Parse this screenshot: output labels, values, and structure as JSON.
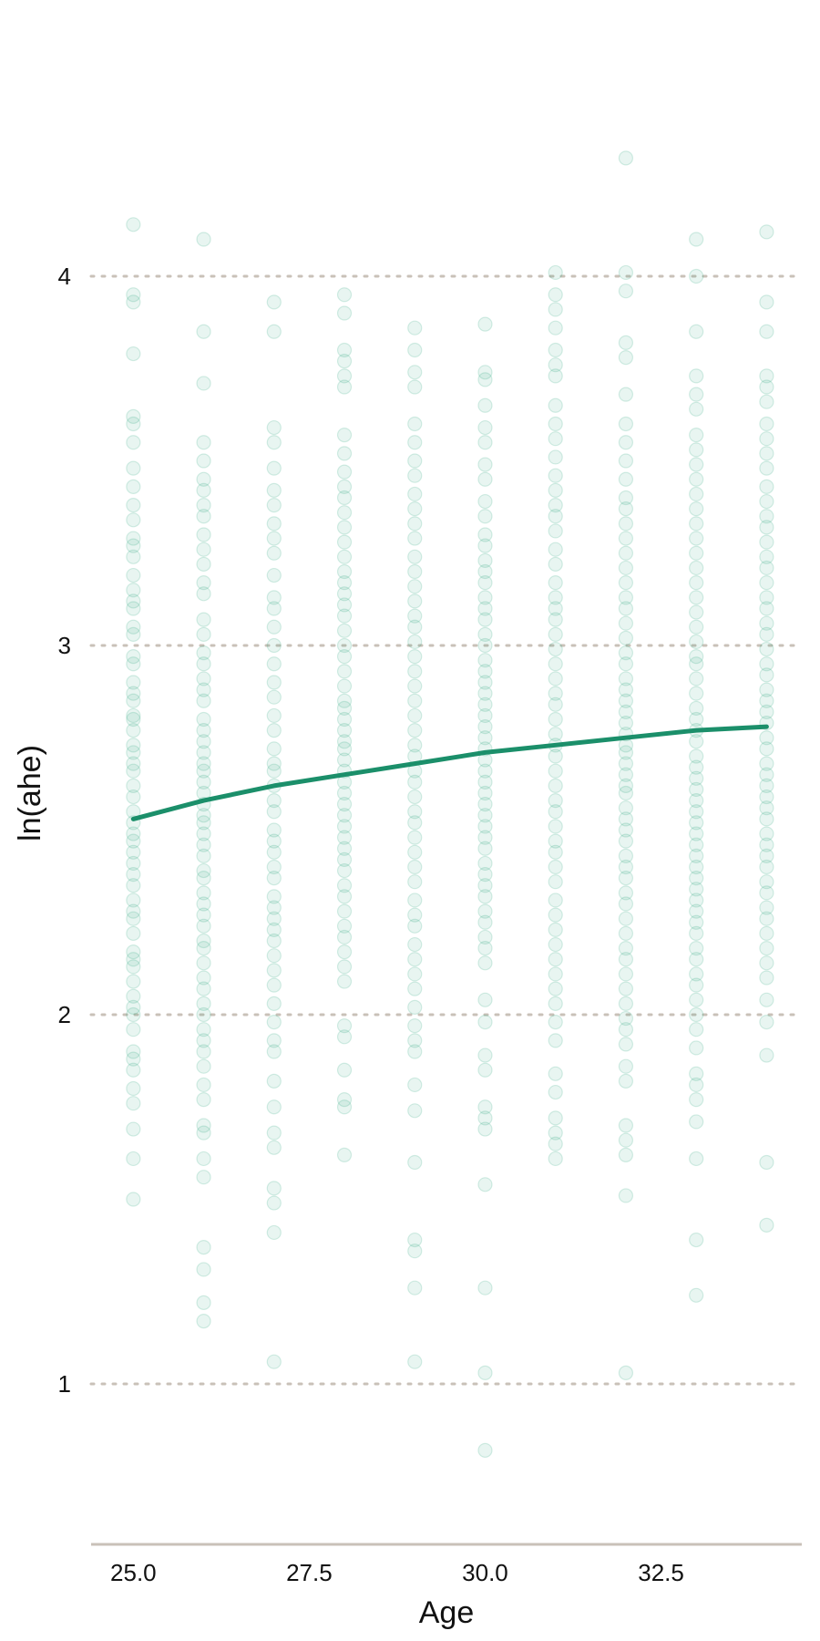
{
  "chart_data": {
    "type": "scatter",
    "title": "",
    "xlabel": "Age",
    "ylabel": "ln(ahe)",
    "xlim": [
      24.4,
      34.5
    ],
    "ylim": [
      0.6,
      4.6
    ],
    "x_ticks": [
      25.0,
      27.5,
      30.0,
      32.5
    ],
    "x_tick_labels": [
      "25.0",
      "27.5",
      "30.0",
      "32.5"
    ],
    "y_ticks": [
      1,
      2,
      3,
      4
    ],
    "y_tick_labels": [
      "1",
      "2",
      "3",
      "4"
    ],
    "grid": "horizontal dotted",
    "legend": "none",
    "colors": {
      "points": "#1b9e77",
      "fit_line": "#1b8f6a",
      "grid": "#c9c1b8",
      "axis": "#c9c1b8"
    },
    "fit_line": {
      "x": [
        25,
        26,
        27,
        28,
        29,
        30,
        31,
        32,
        33,
        34
      ],
      "y": [
        2.53,
        2.58,
        2.62,
        2.65,
        2.68,
        2.71,
        2.73,
        2.75,
        2.77,
        2.78
      ]
    },
    "series": [
      {
        "values": [
          {
            "x": 25,
            "y": [
              4.14,
              3.95,
              3.93,
              3.79,
              3.62,
              3.6,
              3.55,
              3.48,
              3.43,
              3.38,
              3.34,
              3.29,
              3.27,
              3.24,
              3.19,
              3.15,
              3.12,
              3.1,
              3.05,
              3.03,
              2.97,
              2.95,
              2.9,
              2.87,
              2.85,
              2.81,
              2.8,
              2.77,
              2.73,
              2.71,
              2.68,
              2.66,
              2.62,
              2.59,
              2.55,
              2.52,
              2.49,
              2.47,
              2.44,
              2.41,
              2.38,
              2.35,
              2.31,
              2.28,
              2.26,
              2.22,
              2.17,
              2.15,
              2.13,
              2.09,
              2.05,
              2.02,
              2.0,
              1.96,
              1.9,
              1.88,
              1.85,
              1.8,
              1.76,
              1.69,
              1.61,
              1.5
            ]
          },
          {
            "x": 26,
            "y": [
              4.1,
              3.85,
              3.71,
              3.55,
              3.5,
              3.45,
              3.42,
              3.38,
              3.35,
              3.3,
              3.26,
              3.22,
              3.17,
              3.14,
              3.07,
              3.03,
              2.98,
              2.95,
              2.91,
              2.88,
              2.85,
              2.8,
              2.77,
              2.74,
              2.71,
              2.68,
              2.66,
              2.63,
              2.6,
              2.57,
              2.54,
              2.52,
              2.49,
              2.46,
              2.43,
              2.39,
              2.37,
              2.33,
              2.3,
              2.27,
              2.24,
              2.2,
              2.18,
              2.14,
              2.1,
              2.07,
              2.03,
              2.0,
              1.96,
              1.93,
              1.9,
              1.86,
              1.81,
              1.77,
              1.7,
              1.68,
              1.61,
              1.56,
              1.37,
              1.31,
              1.22,
              1.17
            ]
          },
          {
            "x": 27,
            "y": [
              3.93,
              3.85,
              3.59,
              3.55,
              3.48,
              3.42,
              3.38,
              3.33,
              3.29,
              3.25,
              3.19,
              3.13,
              3.1,
              3.05,
              3.0,
              2.95,
              2.9,
              2.86,
              2.81,
              2.77,
              2.72,
              2.68,
              2.66,
              2.62,
              2.58,
              2.55,
              2.5,
              2.47,
              2.44,
              2.4,
              2.37,
              2.32,
              2.29,
              2.26,
              2.23,
              2.2,
              2.16,
              2.12,
              2.08,
              2.03,
              1.98,
              1.93,
              1.9,
              1.82,
              1.75,
              1.68,
              1.64,
              1.53,
              1.49,
              1.41,
              1.06
            ]
          },
          {
            "x": 28,
            "y": [
              3.95,
              3.9,
              3.8,
              3.77,
              3.73,
              3.7,
              3.57,
              3.52,
              3.47,
              3.43,
              3.4,
              3.36,
              3.32,
              3.28,
              3.24,
              3.2,
              3.17,
              3.14,
              3.11,
              3.08,
              3.04,
              3.0,
              2.97,
              2.93,
              2.89,
              2.85,
              2.83,
              2.8,
              2.77,
              2.74,
              2.72,
              2.69,
              2.66,
              2.63,
              2.6,
              2.57,
              2.54,
              2.51,
              2.48,
              2.45,
              2.42,
              2.39,
              2.35,
              2.32,
              2.28,
              2.24,
              2.21,
              2.17,
              2.13,
              2.09,
              1.97,
              1.94,
              1.85,
              1.77,
              1.75,
              1.62
            ]
          },
          {
            "x": 29,
            "y": [
              3.86,
              3.8,
              3.74,
              3.7,
              3.6,
              3.55,
              3.5,
              3.46,
              3.41,
              3.37,
              3.33,
              3.29,
              3.24,
              3.2,
              3.16,
              3.12,
              3.08,
              3.05,
              3.01,
              2.97,
              2.93,
              2.89,
              2.85,
              2.81,
              2.77,
              2.73,
              2.7,
              2.66,
              2.63,
              2.59,
              2.55,
              2.52,
              2.48,
              2.44,
              2.4,
              2.36,
              2.31,
              2.27,
              2.24,
              2.19,
              2.15,
              2.11,
              2.07,
              2.02,
              1.97,
              1.93,
              1.9,
              1.81,
              1.74,
              1.6,
              1.39,
              1.36,
              1.26,
              1.06
            ]
          },
          {
            "x": 30,
            "y": [
              3.87,
              3.74,
              3.72,
              3.65,
              3.59,
              3.55,
              3.49,
              3.45,
              3.39,
              3.35,
              3.3,
              3.27,
              3.23,
              3.2,
              3.17,
              3.13,
              3.1,
              3.07,
              3.03,
              3.0,
              2.96,
              2.93,
              2.9,
              2.87,
              2.84,
              2.81,
              2.78,
              2.75,
              2.72,
              2.69,
              2.66,
              2.63,
              2.6,
              2.57,
              2.54,
              2.51,
              2.48,
              2.45,
              2.41,
              2.38,
              2.35,
              2.32,
              2.28,
              2.25,
              2.21,
              2.18,
              2.14,
              2.04,
              1.98,
              1.89,
              1.85,
              1.75,
              1.72,
              1.69,
              1.54,
              1.26,
              1.03,
              0.82
            ]
          },
          {
            "x": 31,
            "y": [
              4.01,
              3.95,
              3.91,
              3.86,
              3.8,
              3.76,
              3.73,
              3.65,
              3.6,
              3.56,
              3.51,
              3.46,
              3.42,
              3.38,
              3.35,
              3.31,
              3.26,
              3.22,
              3.17,
              3.13,
              3.1,
              3.07,
              3.03,
              2.99,
              2.95,
              2.91,
              2.87,
              2.84,
              2.8,
              2.76,
              2.73,
              2.7,
              2.66,
              2.62,
              2.58,
              2.55,
              2.51,
              2.47,
              2.44,
              2.4,
              2.36,
              2.31,
              2.27,
              2.23,
              2.19,
              2.15,
              2.11,
              2.07,
              2.03,
              1.98,
              1.93,
              1.84,
              1.79,
              1.72,
              1.68,
              1.65,
              1.61
            ]
          },
          {
            "x": 32,
            "y": [
              4.32,
              4.01,
              3.96,
              3.82,
              3.78,
              3.68,
              3.6,
              3.55,
              3.5,
              3.45,
              3.4,
              3.37,
              3.33,
              3.29,
              3.25,
              3.21,
              3.17,
              3.13,
              3.1,
              3.06,
              3.02,
              2.98,
              2.95,
              2.91,
              2.88,
              2.85,
              2.82,
              2.79,
              2.76,
              2.73,
              2.71,
              2.68,
              2.65,
              2.62,
              2.6,
              2.56,
              2.53,
              2.5,
              2.47,
              2.43,
              2.4,
              2.37,
              2.33,
              2.3,
              2.26,
              2.22,
              2.18,
              2.15,
              2.11,
              2.07,
              2.03,
              1.99,
              1.96,
              1.92,
              1.86,
              1.82,
              1.7,
              1.66,
              1.62,
              1.51,
              1.03
            ]
          },
          {
            "x": 33,
            "y": [
              4.1,
              4.0,
              3.85,
              3.73,
              3.68,
              3.64,
              3.57,
              3.53,
              3.49,
              3.45,
              3.41,
              3.37,
              3.33,
              3.29,
              3.25,
              3.21,
              3.17,
              3.13,
              3.09,
              3.05,
              3.01,
              2.97,
              2.95,
              2.91,
              2.87,
              2.83,
              2.8,
              2.77,
              2.74,
              2.7,
              2.67,
              2.64,
              2.61,
              2.58,
              2.55,
              2.52,
              2.49,
              2.46,
              2.43,
              2.4,
              2.37,
              2.34,
              2.31,
              2.28,
              2.25,
              2.22,
              2.18,
              2.15,
              2.11,
              2.08,
              2.04,
              2.0,
              1.96,
              1.91,
              1.84,
              1.81,
              1.77,
              1.71,
              1.61,
              1.39,
              1.24
            ]
          },
          {
            "x": 34,
            "y": [
              4.12,
              3.93,
              3.85,
              3.73,
              3.7,
              3.66,
              3.6,
              3.56,
              3.52,
              3.48,
              3.43,
              3.39,
              3.35,
              3.32,
              3.28,
              3.24,
              3.21,
              3.17,
              3.13,
              3.1,
              3.06,
              3.03,
              2.99,
              2.95,
              2.92,
              2.88,
              2.85,
              2.82,
              2.79,
              2.75,
              2.72,
              2.68,
              2.65,
              2.62,
              2.59,
              2.56,
              2.53,
              2.49,
              2.46,
              2.43,
              2.4,
              2.36,
              2.33,
              2.29,
              2.26,
              2.22,
              2.18,
              2.14,
              2.1,
              2.04,
              1.98,
              1.89,
              1.6,
              1.43
            ]
          }
        ]
      }
    ]
  }
}
